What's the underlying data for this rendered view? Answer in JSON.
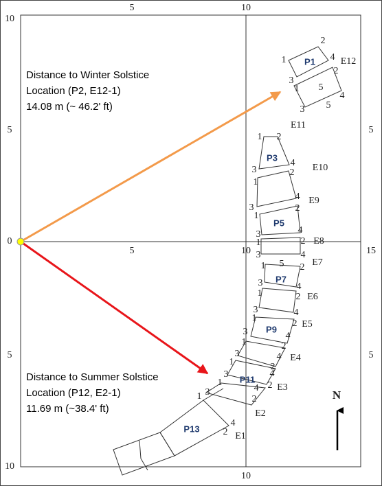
{
  "axis_labels": {
    "top": [
      "5",
      "10"
    ],
    "left": [
      "10",
      "5",
      "0",
      "5",
      "10"
    ],
    "right": [
      "5",
      "15",
      "5"
    ],
    "center": [
      "5",
      "10"
    ],
    "bottom": [
      "10"
    ]
  },
  "pavers": [
    "P1",
    "P3",
    "P5",
    "P7",
    "P9",
    "P11",
    "P13"
  ],
  "edges": [
    "E12",
    "E11",
    "E10",
    "E9",
    "E8",
    "E7",
    "E6",
    "E5",
    "E4",
    "E3",
    "E2",
    "E1"
  ],
  "corner_numbers": [
    "1",
    "2",
    "4",
    "3",
    "1",
    "2",
    "5",
    "4",
    "3",
    "5",
    "1",
    "2",
    "3",
    "4",
    "1",
    "2",
    "3",
    "4",
    "1",
    "2",
    "3",
    "4",
    "1",
    "2",
    "3",
    "4",
    "1",
    "5",
    "2",
    "3",
    "4",
    "1",
    "2",
    "3",
    "4",
    "1",
    "2",
    "3",
    "4",
    "1",
    "2",
    "3",
    "4",
    "1",
    "2",
    "3",
    "4",
    "1",
    "2",
    "3",
    "4",
    "1",
    "2",
    "4",
    "2"
  ],
  "annotations": {
    "winter": [
      "Distance to Winter Solstice",
      "Location (P2, E12-1)",
      "14.08 m (~ 46.2' ft)"
    ],
    "summer": [
      "Distance to Summer Solstice",
      "Location (P12, E2-1)",
      "11.69 m (~38.4' ft)"
    ]
  },
  "north": "N"
}
